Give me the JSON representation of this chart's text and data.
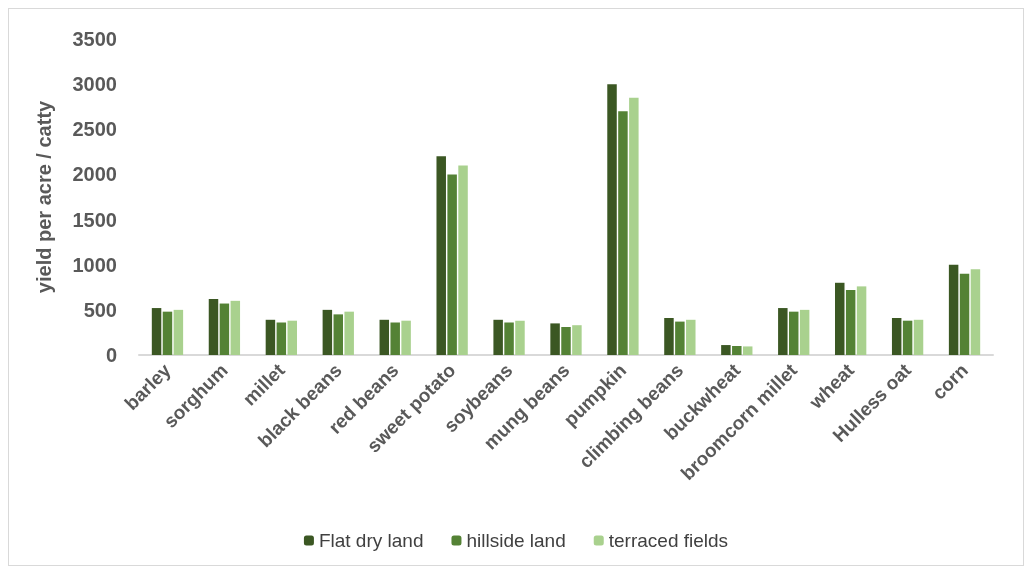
{
  "chart_data": {
    "type": "bar",
    "ylabel": "yield per acre / catty",
    "categories": [
      "barley",
      "sorghum",
      "millet",
      "black beans",
      "red beans",
      "sweet potato",
      "soybeans",
      "mung beans",
      "pumpkin",
      "climbing beans",
      "buckwheat",
      "broomcorn millet",
      "wheat",
      "Hulless oat",
      "corn"
    ],
    "series": [
      {
        "name": "Flat dry land",
        "color": "#3b5723",
        "values": [
          520,
          620,
          390,
          500,
          390,
          2200,
          390,
          350,
          3000,
          410,
          110,
          520,
          800,
          410,
          1000
        ]
      },
      {
        "name": "hillside land",
        "color": "#548235",
        "values": [
          480,
          570,
          360,
          450,
          360,
          2000,
          360,
          310,
          2700,
          370,
          100,
          480,
          720,
          380,
          900
        ]
      },
      {
        "name": "terraced fields",
        "color": "#a9d18e",
        "values": [
          500,
          600,
          380,
          480,
          380,
          2100,
          380,
          330,
          2850,
          390,
          95,
          500,
          760,
          390,
          950
        ]
      }
    ],
    "ylim": [
      0,
      3500
    ],
    "yticks": [
      0,
      500,
      1000,
      1500,
      2000,
      2500,
      3000,
      3500
    ],
    "grid": false,
    "legend": "bottom"
  }
}
